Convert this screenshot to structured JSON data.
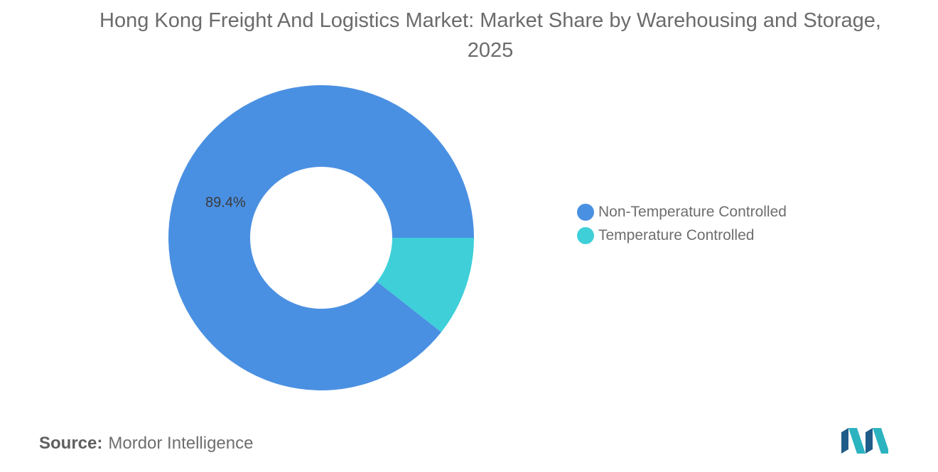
{
  "chart_data": {
    "type": "pie",
    "title": "Hong Kong Freight And Logistics Market: Market Share by Warehousing and Storage, 2025",
    "categories": [
      "Non-Temperature Controlled",
      "Temperature Controlled"
    ],
    "values": [
      89.4,
      10.6
    ],
    "data_labels": [
      "89.4%",
      ""
    ],
    "colors": [
      "#4a90e2",
      "#3ecfd9"
    ],
    "donut": true,
    "legend_position": "right"
  },
  "legend": {
    "items": [
      {
        "label": "Non-Temperature Controlled",
        "color": "#4a90e2"
      },
      {
        "label": "Temperature Controlled",
        "color": "#3ecfd9"
      }
    ]
  },
  "source": {
    "key": "Source:",
    "value": "Mordor Intelligence"
  },
  "logo": {
    "icon": "mordor-intelligence-logo-icon",
    "colors": [
      "#1f5c8a",
      "#2bb3c0"
    ]
  }
}
